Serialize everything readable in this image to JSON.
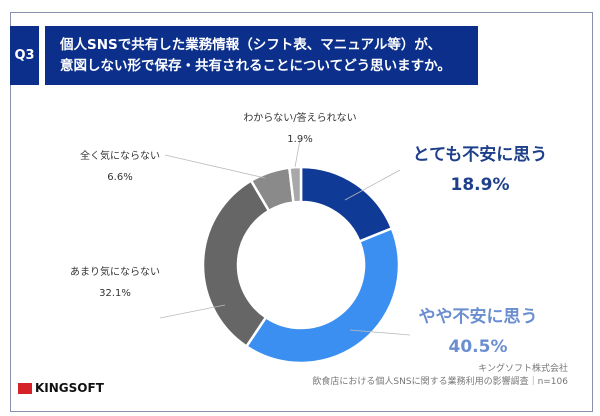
{
  "header": {
    "q_label": "Q3",
    "title_line1": "個人SNSで共有した業務情報（シフト表、マニュアル等）が、",
    "title_line2": "意図しない形で保存・共有されることについてどう思いますか。"
  },
  "chart_data": {
    "type": "pie",
    "donut": true,
    "categories": [
      "とても不安に思う",
      "やや不安に思う",
      "あまり気にならない",
      "全く気にならない",
      "わからない/答えられない"
    ],
    "values": [
      18.9,
      40.5,
      32.1,
      6.6,
      1.9
    ],
    "value_labels": [
      "18.9%",
      "40.5%",
      "32.1%",
      "6.6%",
      "1.9%"
    ],
    "colors": [
      "#0f3a96",
      "#3b8ff0",
      "#666666",
      "#8a8a8a",
      "#a8a8a8"
    ],
    "label_colors": [
      "#1e3f8a",
      "#6a8ed0",
      "#333333",
      "#333333",
      "#333333"
    ]
  },
  "footer": {
    "company": "キングソフト株式会社",
    "source": "飲食店における個人SNSに関する業務利用の影響調査｜n=106",
    "logo": "KINGSOFT"
  }
}
